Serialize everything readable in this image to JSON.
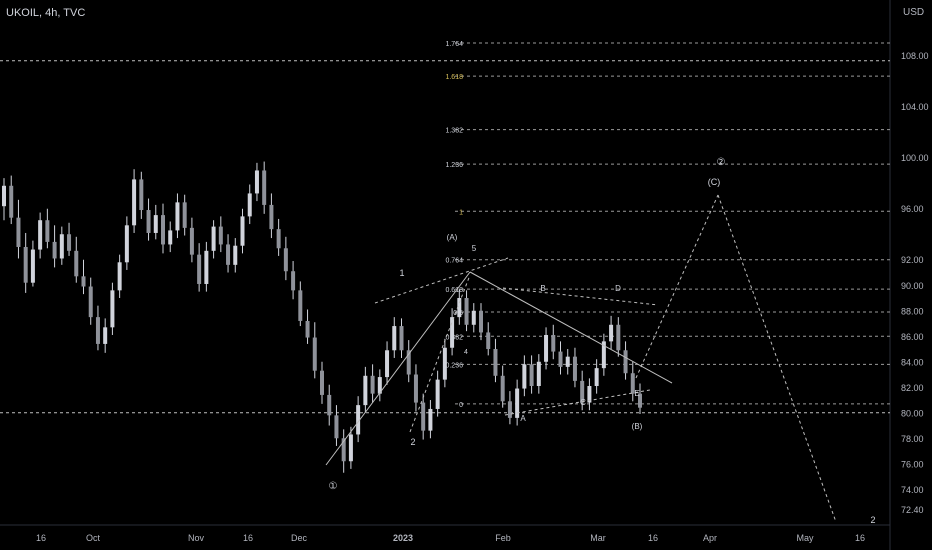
{
  "header": {
    "symbol_label": "UKOIL, 4h, TVC",
    "currency": "USD"
  },
  "colors": {
    "background": "#000000",
    "candle": "#d1d4dc",
    "text": "#d1d4dc",
    "axis_text": "#b2b5be",
    "fib_gold": "#d8c05a",
    "guide": "#bfbfbf"
  },
  "chart_data": {
    "type": "candlestick",
    "title": "",
    "xlabel": "",
    "ylabel": "",
    "ylim": [
      71.2,
      110.8
    ],
    "y_ticks": [
      72.4,
      74.0,
      76.0,
      78.0,
      80.0,
      82.0,
      84.0,
      86.0,
      88.0,
      90.0,
      92.0,
      96.0,
      100.0,
      104.0,
      108.0
    ],
    "y_tick_labels": [
      "72.40",
      "74.00",
      "76.00",
      "78.00",
      "80.00",
      "82.00",
      "84.00",
      "86.00",
      "88.00",
      "90.00",
      "92.00",
      "96.00",
      "100.00",
      "104.00",
      "108.00"
    ],
    "x_tick_labels": [
      "16",
      "Oct",
      "Nov",
      "16",
      "Dec",
      "2023",
      "Feb",
      "Mar",
      "16",
      "Apr",
      "May",
      "16"
    ],
    "x_tick_bold": [
      false,
      false,
      false,
      false,
      false,
      true,
      false,
      false,
      false,
      false,
      false,
      false
    ],
    "horizontal_lines": [
      107.6,
      80.0
    ],
    "fib_levels": [
      {
        "label": "1.764",
        "price": 109.0
      },
      {
        "label": "1.618",
        "price": 106.4,
        "color": "#d8c05a"
      },
      {
        "label": "1.382",
        "price": 102.2
      },
      {
        "label": "1.236",
        "price": 99.5
      },
      {
        "label": "1",
        "price": 95.8,
        "color": "#d8c05a"
      },
      {
        "label": "0.764",
        "price": 92.0
      },
      {
        "label": "0.618",
        "price": 89.7
      },
      {
        "label": "0.5",
        "price": 87.9
      },
      {
        "label": "0.382",
        "price": 86.0
      },
      {
        "label": "0.236",
        "price": 83.8
      },
      {
        "label": "0",
        "price": 80.7
      }
    ],
    "series": [
      {
        "values": [
          [
            96.2,
            98.4,
            95.1,
            97.8
          ],
          [
            97.8,
            98.6,
            94.8,
            95.3
          ],
          [
            95.3,
            96.7,
            92.1,
            93.0
          ],
          [
            93.0,
            94.1,
            89.4,
            90.2
          ],
          [
            90.2,
            93.5,
            89.9,
            92.8
          ],
          [
            92.8,
            95.7,
            92.1,
            95.1
          ],
          [
            95.1,
            96.0,
            92.9,
            93.4
          ],
          [
            93.4,
            94.7,
            91.4,
            92.1
          ],
          [
            92.1,
            94.6,
            91.6,
            94.0
          ],
          [
            94.0,
            94.9,
            92.3,
            92.7
          ],
          [
            92.7,
            93.8,
            90.2,
            90.7
          ],
          [
            90.7,
            92.0,
            89.3,
            89.9
          ],
          [
            89.9,
            90.6,
            86.9,
            87.5
          ],
          [
            87.5,
            88.4,
            84.9,
            85.4
          ],
          [
            85.4,
            87.4,
            84.7,
            86.7
          ],
          [
            86.7,
            90.2,
            86.1,
            89.6
          ],
          [
            89.6,
            92.4,
            89.0,
            91.8
          ],
          [
            91.8,
            95.4,
            91.2,
            94.7
          ],
          [
            94.7,
            99.1,
            94.1,
            98.3
          ],
          [
            98.3,
            98.9,
            95.2,
            95.9
          ],
          [
            95.9,
            96.8,
            93.5,
            94.1
          ],
          [
            94.1,
            96.3,
            93.6,
            95.5
          ],
          [
            95.5,
            96.4,
            92.5,
            93.2
          ],
          [
            93.2,
            95.0,
            92.6,
            94.3
          ],
          [
            94.3,
            97.2,
            93.7,
            96.5
          ],
          [
            96.5,
            97.1,
            93.9,
            94.5
          ],
          [
            94.5,
            95.3,
            91.8,
            92.4
          ],
          [
            92.4,
            93.3,
            89.5,
            90.1
          ],
          [
            90.1,
            93.4,
            89.5,
            92.7
          ],
          [
            92.7,
            95.1,
            92.1,
            94.6
          ],
          [
            94.6,
            95.4,
            92.6,
            93.2
          ],
          [
            93.2,
            94.0,
            91.0,
            91.6
          ],
          [
            91.6,
            93.7,
            91.0,
            93.1
          ],
          [
            93.1,
            96.0,
            92.5,
            95.4
          ],
          [
            95.4,
            97.9,
            94.8,
            97.2
          ],
          [
            97.2,
            99.6,
            96.6,
            99.0
          ],
          [
            99.0,
            99.7,
            95.6,
            96.3
          ],
          [
            96.3,
            97.2,
            93.7,
            94.4
          ],
          [
            94.4,
            95.2,
            92.3,
            92.9
          ],
          [
            92.9,
            93.8,
            90.4,
            91.1
          ],
          [
            91.1,
            91.9,
            88.9,
            89.6
          ],
          [
            89.6,
            90.3,
            86.8,
            87.2
          ],
          [
            87.2,
            88.1,
            85.4,
            85.9
          ],
          [
            85.9,
            87.1,
            82.7,
            83.3
          ],
          [
            83.3,
            84.0,
            80.7,
            81.4
          ],
          [
            81.4,
            82.2,
            79.0,
            79.8
          ],
          [
            79.8,
            80.6,
            77.4,
            78.0
          ],
          [
            78.0,
            78.7,
            75.3,
            76.2
          ],
          [
            76.2,
            78.9,
            75.6,
            78.3
          ],
          [
            78.3,
            81.3,
            77.7,
            80.6
          ],
          [
            80.6,
            83.6,
            80.0,
            82.9
          ],
          [
            82.9,
            83.8,
            80.8,
            81.5
          ],
          [
            81.5,
            83.4,
            80.9,
            82.8
          ],
          [
            82.8,
            85.6,
            82.2,
            84.9
          ],
          [
            84.9,
            87.5,
            84.3,
            86.8
          ],
          [
            86.8,
            87.4,
            84.3,
            84.9
          ],
          [
            84.9,
            85.7,
            82.4,
            83.0
          ],
          [
            83.0,
            83.8,
            80.1,
            80.8
          ],
          [
            80.8,
            81.5,
            77.9,
            78.6
          ],
          [
            78.6,
            81.0,
            78.0,
            80.3
          ],
          [
            80.3,
            83.3,
            79.7,
            82.6
          ],
          [
            82.6,
            85.8,
            82.0,
            85.1
          ],
          [
            85.1,
            88.2,
            84.5,
            87.5
          ],
          [
            87.5,
            89.7,
            86.9,
            89.0
          ],
          [
            89.0,
            89.6,
            86.4,
            86.9
          ],
          [
            86.9,
            88.6,
            86.3,
            88.0
          ],
          [
            88.0,
            88.6,
            85.7,
            86.3
          ],
          [
            86.3,
            87.1,
            84.5,
            85.0
          ],
          [
            85.0,
            85.8,
            82.4,
            82.9
          ],
          [
            82.9,
            83.7,
            80.4,
            80.9
          ],
          [
            80.9,
            81.7,
            79.1,
            79.6
          ],
          [
            79.6,
            82.6,
            79.0,
            81.9
          ],
          [
            81.9,
            84.5,
            81.3,
            83.8
          ],
          [
            83.8,
            84.5,
            81.5,
            82.1
          ],
          [
            82.1,
            84.6,
            81.5,
            84.0
          ],
          [
            84.0,
            86.7,
            83.4,
            86.1
          ],
          [
            86.1,
            86.9,
            84.2,
            84.8
          ],
          [
            84.8,
            85.6,
            83.0,
            83.6
          ],
          [
            83.6,
            85.0,
            83.0,
            84.4
          ],
          [
            84.4,
            85.1,
            82.0,
            82.5
          ],
          [
            82.5,
            83.3,
            80.2,
            80.8
          ],
          [
            80.8,
            82.7,
            80.2,
            82.1
          ],
          [
            82.1,
            84.2,
            81.5,
            83.5
          ],
          [
            83.5,
            86.2,
            82.9,
            85.6
          ],
          [
            85.6,
            87.6,
            85.0,
            86.9
          ],
          [
            86.9,
            87.5,
            84.4,
            84.9
          ],
          [
            84.9,
            85.6,
            82.6,
            83.1
          ],
          [
            83.1,
            84.0,
            80.9,
            81.5
          ],
          [
            81.5,
            82.3,
            79.9,
            80.4
          ]
        ]
      }
    ],
    "wave_labels": [
      "1",
      "2",
      "4",
      "5",
      "(A)",
      "A",
      "B",
      "C",
      "D",
      "E",
      "(B)",
      "(C)",
      "①",
      "②",
      "2"
    ]
  }
}
